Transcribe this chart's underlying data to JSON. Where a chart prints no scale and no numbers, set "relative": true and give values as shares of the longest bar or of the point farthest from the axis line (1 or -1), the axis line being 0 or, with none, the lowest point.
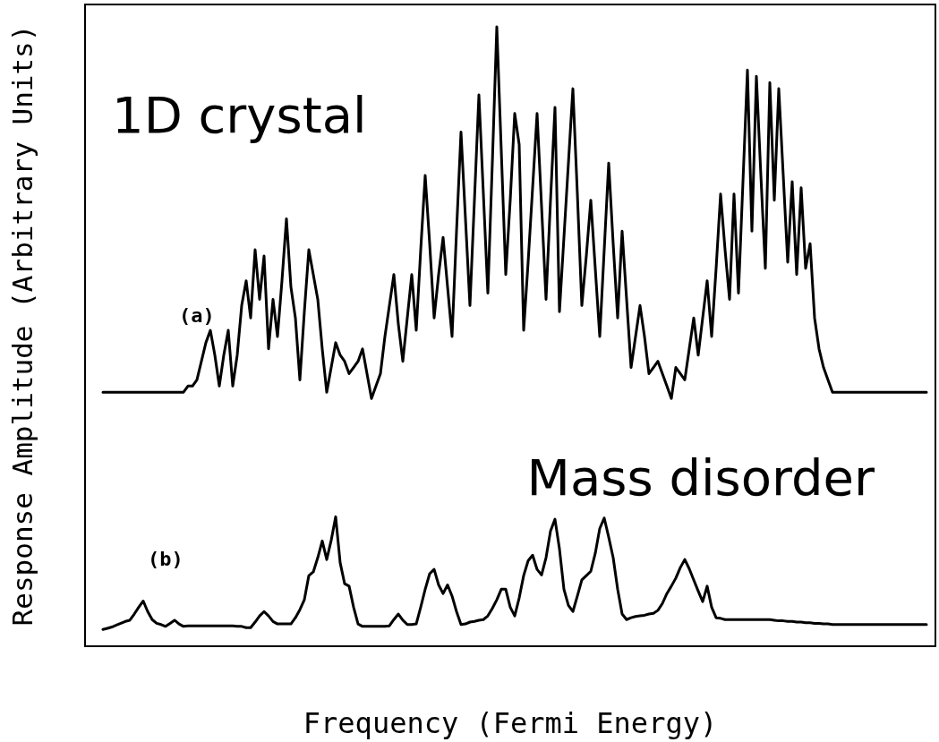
{
  "chart_data": {
    "type": "line",
    "relative": true,
    "xlabel": "Frequency (Fermi Energy)",
    "ylabel": "Response Amplitude (Arbitrary Units)",
    "annotations": [
      "1D crystal",
      "Mass disorder"
    ],
    "grid": false,
    "legend": false,
    "marker": "none",
    "line_style": "solid",
    "categories": [
      null,
      null,
      null,
      null,
      null,
      null,
      null,
      null,
      null,
      null,
      null,
      null,
      null,
      null,
      null,
      null,
      null,
      null,
      null,
      null,
      null,
      null,
      null,
      null,
      null,
      null,
      null,
      null,
      null,
      null,
      null,
      null,
      null,
      null,
      null,
      null,
      null,
      null,
      null,
      null,
      null,
      null,
      null,
      null,
      null,
      null,
      null,
      null,
      null,
      null,
      null,
      null,
      null,
      null,
      null,
      null,
      null,
      null,
      null,
      null,
      null,
      null,
      null,
      null,
      null,
      null,
      null,
      null,
      null,
      null,
      null,
      null,
      null,
      null,
      null,
      null,
      null,
      null,
      null,
      null,
      null,
      null,
      null,
      null,
      null,
      null,
      null,
      null,
      null,
      null,
      null,
      null,
      null,
      null,
      null,
      null,
      null,
      null,
      null,
      null,
      null,
      null,
      null,
      null,
      null,
      null,
      null,
      null,
      null,
      null,
      null,
      null,
      null,
      null,
      null,
      null,
      null,
      null,
      null,
      null,
      null,
      null,
      null,
      null,
      null,
      null,
      null,
      null,
      null,
      null,
      null,
      null,
      null,
      null,
      null,
      null,
      null,
      null,
      null,
      null,
      null,
      null,
      null,
      null,
      null,
      null,
      null,
      null,
      null,
      null,
      null,
      null,
      null,
      null,
      null,
      null,
      null,
      null,
      null,
      null,
      null,
      null,
      null,
      null,
      null,
      null,
      null,
      null,
      null,
      null,
      null,
      null,
      null,
      null,
      null,
      null,
      null,
      null,
      null,
      null,
      null,
      null,
      null,
      null,
      null,
      null,
      null,
      null,
      null,
      null,
      null
    ],
    "series": [
      {
        "name": "(a)",
        "color": "#000000",
        "values": [
          null,
          null,
          null,
          null,
          0.41,
          0.41,
          0.41,
          0.41,
          0.41,
          0.41,
          0.41,
          0.41,
          0.41,
          0.41,
          0.41,
          0.41,
          0.41,
          0.41,
          0.41,
          0.41,
          0.41,
          0.41,
          0.41,
          0.42,
          0.42,
          0.43,
          0.46,
          0.49,
          0.51,
          0.47,
          0.42,
          0.47,
          0.51,
          0.42,
          0.47,
          0.55,
          0.59,
          0.53,
          0.64,
          0.56,
          0.63,
          0.48,
          0.56,
          0.5,
          0.59,
          0.69,
          0.58,
          0.53,
          0.43,
          0.54,
          0.64,
          0.6,
          0.56,
          0.48,
          0.41,
          0.45,
          0.49,
          0.47,
          0.46,
          0.44,
          0.45,
          0.46,
          0.48,
          0.44,
          0.4,
          0.42,
          0.44,
          0.5,
          0.55,
          0.6,
          0.52,
          0.46,
          0.53,
          0.6,
          0.51,
          0.64,
          0.76,
          0.65,
          0.53,
          0.6,
          0.66,
          0.58,
          0.5,
          0.67,
          0.83,
          0.69,
          0.55,
          0.72,
          0.89,
          0.73,
          0.57,
          0.78,
          1.0,
          0.8,
          0.6,
          0.72,
          0.86,
          0.81,
          0.51,
          0.62,
          0.74,
          0.86,
          0.71,
          0.56,
          0.72,
          0.87,
          0.54,
          0.66,
          0.78,
          0.9,
          0.73,
          0.55,
          0.63,
          0.72,
          0.61,
          0.5,
          0.64,
          0.78,
          0.65,
          0.53,
          0.67,
          0.56,
          0.45,
          0.5,
          0.55,
          0.5,
          0.44,
          0.45,
          0.46,
          0.44,
          0.42,
          0.4,
          0.45,
          0.44,
          0.43,
          0.48,
          0.53,
          0.47,
          0.53,
          0.59,
          0.5,
          0.61,
          0.73,
          0.64,
          0.56,
          0.73,
          0.57,
          0.75,
          0.93,
          0.67,
          0.92,
          0.76,
          0.61,
          0.91,
          0.72,
          0.9,
          0.76,
          0.62,
          0.75,
          0.6,
          0.74,
          0.61,
          0.65,
          0.53,
          0.48,
          0.45,
          0.43,
          0.41,
          0.41,
          0.41,
          0.41,
          0.41,
          0.41,
          0.41,
          0.41,
          0.41,
          0.41,
          0.41,
          0.41,
          0.41,
          0.41,
          0.41,
          0.41,
          0.41,
          0.41,
          0.41,
          0.41,
          0.41,
          0.41,
          null,
          null
        ]
      },
      {
        "name": "(b)",
        "color": "#000000",
        "values": [
          null,
          null,
          null,
          null,
          0.027,
          0.029,
          0.031,
          0.034,
          0.037,
          0.04,
          0.042,
          0.052,
          0.063,
          0.073,
          0.056,
          0.043,
          0.037,
          0.035,
          0.032,
          0.037,
          0.042,
          0.036,
          0.032,
          0.033,
          0.033,
          0.033,
          0.033,
          0.033,
          0.033,
          0.033,
          0.033,
          0.033,
          0.033,
          0.033,
          0.032,
          0.032,
          0.03,
          0.03,
          0.039,
          0.049,
          0.056,
          0.049,
          0.04,
          0.036,
          0.036,
          0.036,
          0.036,
          0.046,
          0.059,
          0.075,
          0.114,
          0.12,
          0.143,
          0.17,
          0.14,
          0.171,
          0.209,
          0.135,
          0.101,
          0.097,
          0.063,
          0.036,
          0.032,
          0.032,
          0.032,
          0.032,
          0.032,
          0.032,
          0.033,
          0.043,
          0.052,
          0.042,
          0.035,
          0.035,
          0.036,
          0.063,
          0.092,
          0.117,
          0.124,
          0.099,
          0.085,
          0.099,
          0.081,
          0.056,
          0.035,
          0.036,
          0.039,
          0.04,
          0.042,
          0.043,
          0.049,
          0.061,
          0.075,
          0.092,
          0.092,
          0.063,
          0.049,
          0.078,
          0.114,
          0.138,
          0.147,
          0.124,
          0.115,
          0.143,
          0.186,
          0.205,
          0.157,
          0.092,
          0.066,
          0.056,
          0.081,
          0.107,
          0.114,
          0.121,
          0.15,
          0.19,
          0.207,
          0.176,
          0.143,
          0.092,
          0.052,
          0.043,
          0.046,
          0.048,
          0.049,
          0.05,
          0.052,
          0.053,
          0.058,
          0.069,
          0.085,
          0.097,
          0.11,
          0.127,
          0.14,
          0.125,
          0.107,
          0.089,
          0.072,
          0.097,
          0.063,
          0.046,
          0.045,
          0.043,
          0.043,
          0.043,
          0.043,
          0.043,
          0.043,
          0.043,
          0.043,
          0.043,
          0.043,
          0.043,
          0.042,
          0.041,
          0.041,
          0.04,
          0.04,
          0.039,
          0.039,
          0.038,
          0.038,
          0.037,
          0.037,
          0.036,
          0.036,
          0.035,
          0.035,
          0.035,
          0.035,
          0.035,
          0.035,
          0.035,
          0.035,
          0.035,
          0.035,
          0.035,
          0.035,
          0.035,
          0.035,
          0.035,
          0.035,
          0.035,
          0.035,
          0.035,
          0.035,
          0.035,
          0.035,
          null,
          null
        ]
      }
    ]
  }
}
